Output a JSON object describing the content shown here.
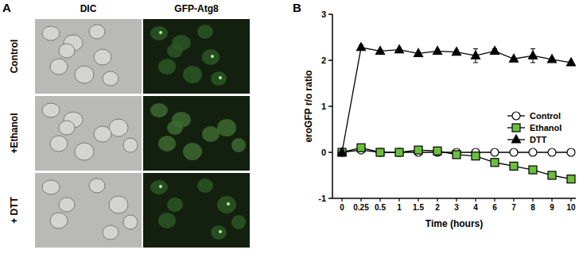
{
  "panel_a": {
    "label": "A",
    "columns": [
      "DIC",
      "GFP-Atg8"
    ],
    "rows": [
      "Control",
      "+Ethanol",
      "+ DTT"
    ]
  },
  "chart_data": {
    "type": "line",
    "panel_label": "B",
    "x_label": "Time (hours)",
    "y_label": "eroGFP  r/o ratio",
    "categories": [
      "0",
      "0.25",
      "0.5",
      "1",
      "1.5",
      "2",
      "3",
      "4",
      "6",
      "7",
      "8",
      "9",
      "10"
    ],
    "ylim": [
      -1,
      3
    ],
    "yticks": [
      -1,
      0,
      1,
      2,
      3
    ],
    "grid": false,
    "legend": "right",
    "series": [
      {
        "name": "Control",
        "color": "#ffffff",
        "marker": "circle",
        "line_style": "solid",
        "values": [
          0,
          0.05,
          0,
          0,
          0,
          0,
          0,
          0,
          0,
          0,
          0,
          0,
          0
        ]
      },
      {
        "name": "Ethanol",
        "color": "#6abf3c",
        "marker": "square",
        "line_style": "solid",
        "values": [
          0,
          0.1,
          0,
          0,
          0.05,
          0.03,
          -0.05,
          -0.08,
          -0.22,
          -0.3,
          -0.38,
          -0.5,
          -0.58
        ]
      },
      {
        "name": "DTT",
        "color": "#000000",
        "marker": "triangle",
        "line_style": "solid",
        "values": [
          0,
          2.28,
          2.2,
          2.23,
          2.15,
          2.2,
          2.18,
          2.1,
          2.2,
          2.03,
          2.1,
          2.02,
          1.95
        ],
        "errors": [
          0,
          0.05,
          0.03,
          0.03,
          0.03,
          0.03,
          0.03,
          0.15,
          0.05,
          0.03,
          0.15,
          0.03,
          0.03
        ]
      }
    ]
  }
}
